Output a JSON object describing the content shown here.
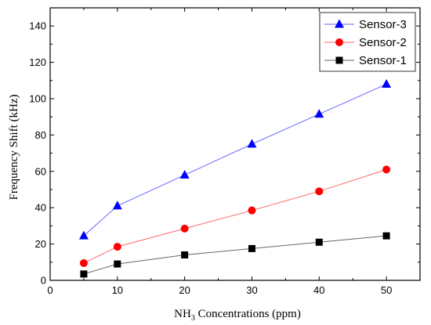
{
  "chart_data": {
    "type": "line",
    "x": [
      5,
      10,
      20,
      30,
      40,
      50
    ],
    "xlim": [
      0,
      55
    ],
    "ylim": [
      0,
      150
    ],
    "xticks": [
      0,
      10,
      20,
      30,
      40,
      50
    ],
    "yticks": [
      0,
      20,
      40,
      60,
      80,
      100,
      120,
      140
    ],
    "xlabel_main": "NH",
    "xlabel_sub": "3",
    "xlabel_rest": " Concentrations (ppm)",
    "ylabel": "Frequency Shift (kHz)",
    "grid": false,
    "legend_position": "top-right",
    "series": [
      {
        "name": "Sensor-3",
        "color": "#0000ff",
        "marker": "triangle",
        "values": [
          24.5,
          41,
          58,
          75,
          91.5,
          108
        ]
      },
      {
        "name": "Sensor-2",
        "color": "#ff0000",
        "marker": "circle",
        "values": [
          9.5,
          18.5,
          28.5,
          38.5,
          49,
          61
        ]
      },
      {
        "name": "Sensor-1",
        "color": "#000000",
        "marker": "square",
        "values": [
          3.5,
          9,
          14,
          17.5,
          21,
          24.5
        ]
      }
    ]
  }
}
